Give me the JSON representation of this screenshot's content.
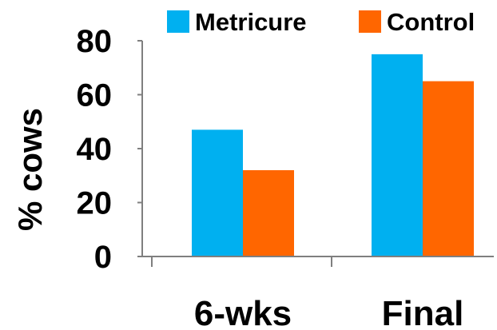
{
  "chart_data": {
    "type": "bar",
    "categories": [
      "6-wks",
      "Final"
    ],
    "series": [
      {
        "name": "Metricure",
        "values": [
          47,
          75
        ],
        "color": "#00B0F0"
      },
      {
        "name": "Control",
        "values": [
          32,
          65
        ],
        "color": "#FF6600"
      }
    ],
    "ylabel": "% cows",
    "xlabel": "",
    "ylim": [
      0,
      80
    ],
    "yticks": [
      0,
      20,
      40,
      60,
      80
    ],
    "grid": false,
    "legend": "top"
  }
}
